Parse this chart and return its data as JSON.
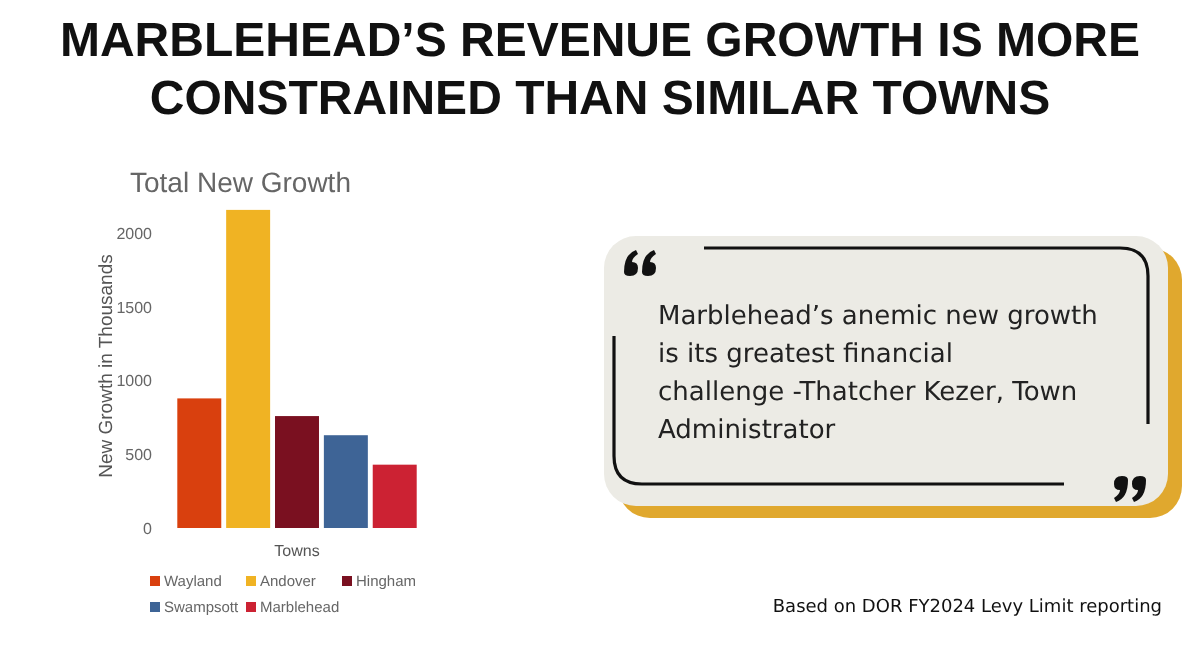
{
  "chart_data": [
    {
      "type": "bar",
      "title": "MARBLEHEAD’S REVENUE GROWTH IS MORE CONSTRAINED THAN SIMILAR TOWNS",
      "subtitle": "Total New Growth",
      "xlabel": "Towns",
      "ylabel": "New Growth in Thousands",
      "categories": [
        null
      ],
      "series": [
        {
          "name": "Wayland",
          "color": "#d9400e",
          "values": [
            880
          ]
        },
        {
          "name": "Andover",
          "color": "#f0b323",
          "values": [
            2160
          ]
        },
        {
          "name": "Hingham",
          "color": "#7a1020",
          "values": [
            760
          ]
        },
        {
          "name": "Swampsott",
          "color": "#3e6496",
          "values": [
            630
          ]
        },
        {
          "name": "Marblehead",
          "color": "#cc2233",
          "values": [
            430
          ]
        }
      ],
      "ylim": [
        0,
        2200
      ],
      "yticks": [
        0,
        500,
        1000,
        1500,
        2000
      ],
      "grid": false,
      "legend": "bottom"
    },
    {
      "type": "other",
      "annotations": [
        "Marblehead’s anemic new growth is its greatest financial challenge -Thatcher Kezer, Town Administrator",
        "Based on DOR FY2024 Levy Limit reporting"
      ]
    }
  ]
}
